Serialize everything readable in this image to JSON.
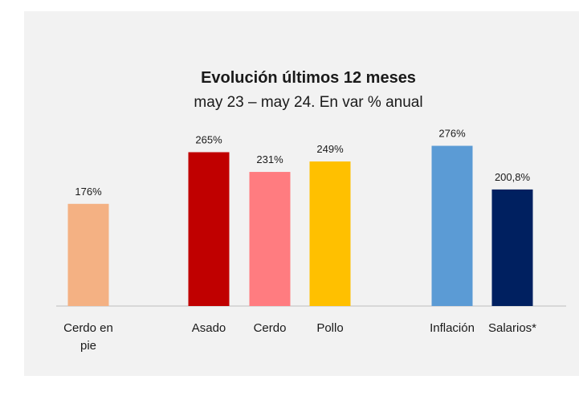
{
  "chart_data": {
    "type": "bar",
    "title": "Evolución últimos 12 meses",
    "subtitle": "may 23 – may 24. En var % anual",
    "categories": [
      "Cerdo en pie",
      "Asado",
      "Cerdo",
      "Pollo",
      "Inflación",
      "Salarios*"
    ],
    "category_lines": [
      [
        "Cerdo en",
        "pie"
      ],
      [
        "Asado"
      ],
      [
        "Cerdo"
      ],
      [
        "Pollo"
      ],
      [
        "Inflación"
      ],
      [
        "Salarios*"
      ]
    ],
    "values": [
      176,
      265,
      231,
      249,
      276,
      200.8
    ],
    "value_labels": [
      "176%",
      "265%",
      "231%",
      "249%",
      "276%",
      "200,8%"
    ],
    "colors": [
      "#f4b183",
      "#c00000",
      "#ff7c80",
      "#ffc000",
      "#5b9bd5",
      "#002060"
    ],
    "ylim": [
      0,
      300
    ],
    "grid": false,
    "legend": "none"
  }
}
